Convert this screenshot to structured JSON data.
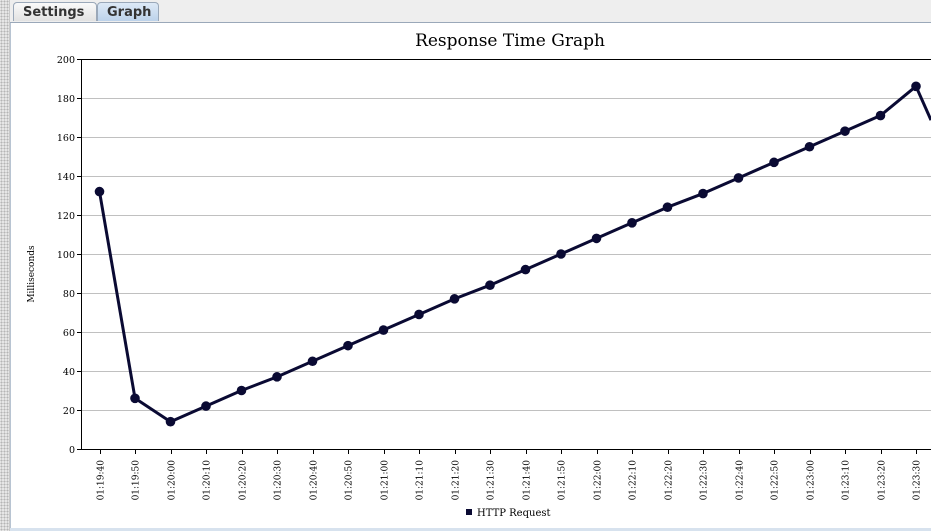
{
  "tabs": [
    {
      "label": "Settings"
    },
    {
      "label": "Graph"
    }
  ],
  "active_tab": "Graph",
  "chart_data": {
    "type": "line",
    "title": "Response Time Graph",
    "ylabel": "Milliseconds",
    "xlabel": "",
    "ylim": [
      0,
      200
    ],
    "yticks": [
      0,
      20,
      40,
      60,
      80,
      100,
      120,
      140,
      160,
      180,
      200
    ],
    "grid": true,
    "legend_position": "bottom",
    "series_color": "#0a0a33",
    "categories": [
      "01:19:40",
      "01:19:50",
      "01:20:00",
      "01:20:10",
      "01:20:20",
      "01:20:30",
      "01:20:40",
      "01:20:50",
      "01:21:00",
      "01:21:10",
      "01:21:20",
      "01:21:30",
      "01:21:40",
      "01:21:50",
      "01:22:00",
      "01:22:10",
      "01:22:20",
      "01:22:30",
      "01:22:40",
      "01:22:50",
      "01:23:00",
      "01:23:10",
      "01:23:20",
      "01:23:30"
    ],
    "series": [
      {
        "name": "HTTP Request",
        "values": [
          132,
          26,
          14,
          22,
          30,
          37,
          45,
          53,
          61,
          69,
          77,
          84,
          92,
          100,
          108,
          116,
          124,
          131,
          139,
          147,
          155,
          163,
          171,
          186
        ],
        "trailing_value": 145
      }
    ]
  }
}
